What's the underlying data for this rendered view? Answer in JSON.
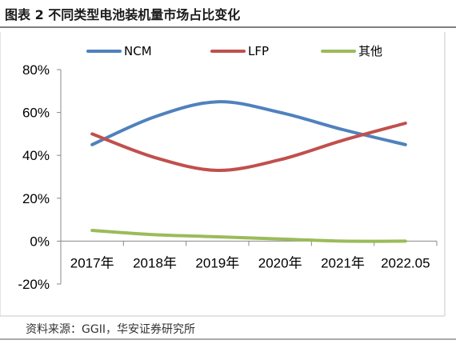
{
  "figure": {
    "title": "图表 2 不同类型电池装机量市场占比变化",
    "source": "资料来源：GGII，华安证券研究所"
  },
  "chart_data": {
    "type": "line",
    "title": "",
    "xlabel": "",
    "ylabel": "",
    "categories": [
      "2017年",
      "2018年",
      "2019年",
      "2020年",
      "2021年",
      "2022.05"
    ],
    "y_ticks": [
      "80%",
      "60%",
      "40%",
      "20%",
      "0%",
      "-20%"
    ],
    "ylim": [
      -20,
      80
    ],
    "y_unit": "%",
    "grid": false,
    "legend_position": "top",
    "series": [
      {
        "name": "NCM",
        "color": "#4F81BD",
        "values": [
          45,
          58,
          65,
          60,
          52,
          45
        ]
      },
      {
        "name": "LFP",
        "color": "#C0504D",
        "values": [
          50,
          39,
          33,
          38,
          47,
          55
        ]
      },
      {
        "name": "其他",
        "color": "#9BBB59",
        "values": [
          5,
          3,
          2,
          1,
          0,
          0
        ]
      }
    ]
  }
}
